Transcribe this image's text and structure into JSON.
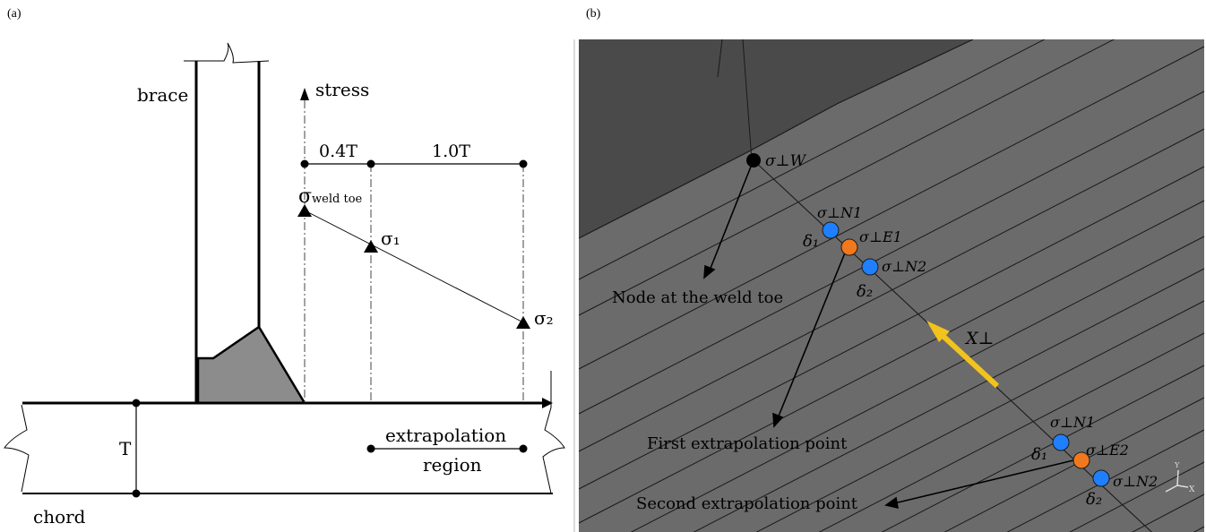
{
  "panels": {
    "a": {
      "label": "(a)"
    },
    "b": {
      "label": "(b)"
    }
  },
  "left": {
    "brace": "brace",
    "stress": "stress",
    "dist_04t": "0.4T",
    "dist_10t": "1.0T",
    "sigma": "σ",
    "weld_toe_sub": "weld toe",
    "sigma1": "σ₁",
    "sigma2": "σ₂",
    "thickness": "T",
    "extrapolation": "extrapolation",
    "region": "region",
    "chord": "chord"
  },
  "right": {
    "sigma_w": "σ⊥W",
    "sigma_n1_top": "σ⊥N1",
    "sigma_e1": "σ⊥E1",
    "sigma_n2_top": "σ⊥N2",
    "delta1_top": "δ₁",
    "delta2_top": "δ₂",
    "x_perp": "X⊥",
    "node_label": "Node at the weld toe",
    "first_label": "First extrapolation point",
    "sigma_n1_bot": "σ⊥N1",
    "sigma_e2": "σ⊥E2",
    "sigma_n2_bot": "σ⊥N2",
    "delta1_bot": "δ₁",
    "delta2_bot": "δ₂",
    "second_label": "Second extrapolation point",
    "axis_y": "Y",
    "axis_x": "X"
  },
  "colors": {
    "node_blue": "#1f7fff",
    "node_orange": "#f2781e",
    "arrow_yellow": "#f2c31c",
    "mesh_dark": "#4a4a4a",
    "mesh_light": "#6b6b6b"
  }
}
